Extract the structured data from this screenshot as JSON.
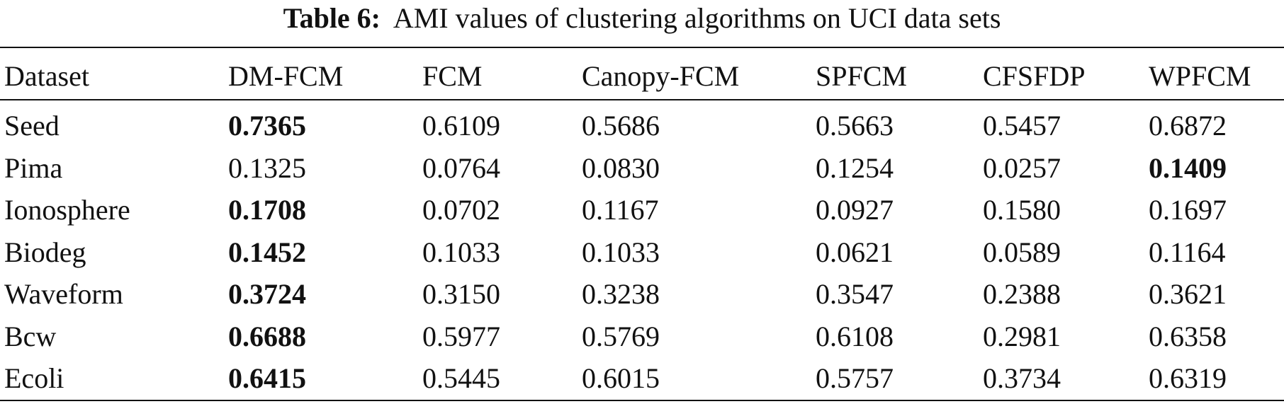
{
  "caption": {
    "label": "Table 6:",
    "text": "AMI values of clustering algorithms on UCI data sets"
  },
  "table": {
    "headers": [
      "Dataset",
      "DM-FCM",
      "FCM",
      "Canopy-FCM",
      "SPFCM",
      "CFSFDP",
      "WPFCM"
    ],
    "rows": [
      {
        "name": "Seed",
        "values": [
          "0.7365",
          "0.6109",
          "0.5686",
          "0.5663",
          "0.5457",
          "0.6872"
        ],
        "bold": [
          0
        ]
      },
      {
        "name": "Pima",
        "values": [
          "0.1325",
          "0.0764",
          "0.0830",
          "0.1254",
          "0.0257",
          "0.1409"
        ],
        "bold": [
          5
        ]
      },
      {
        "name": "Ionosphere",
        "values": [
          "0.1708",
          "0.0702",
          "0.1167",
          "0.0927",
          "0.1580",
          "0.1697"
        ],
        "bold": [
          0
        ]
      },
      {
        "name": "Biodeg",
        "values": [
          "0.1452",
          "0.1033",
          "0.1033",
          "0.0621",
          "0.0589",
          "0.1164"
        ],
        "bold": [
          0
        ]
      },
      {
        "name": "Waveform",
        "values": [
          "0.3724",
          "0.3150",
          "0.3238",
          "0.3547",
          "0.2388",
          "0.3621"
        ],
        "bold": [
          0
        ]
      },
      {
        "name": "Bcw",
        "values": [
          "0.6688",
          "0.5977",
          "0.5769",
          "0.6108",
          "0.2981",
          "0.6358"
        ],
        "bold": [
          0
        ]
      },
      {
        "name": "Ecoli",
        "values": [
          "0.6415",
          "0.5445",
          "0.6015",
          "0.5757",
          "0.3734",
          "0.6319"
        ],
        "bold": [
          0
        ]
      }
    ]
  }
}
